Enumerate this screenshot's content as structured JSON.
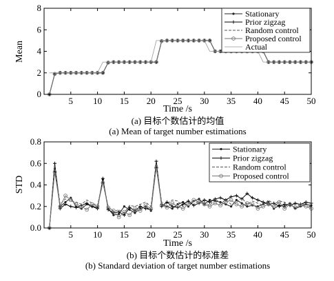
{
  "chart_data": [
    {
      "type": "line",
      "caption_zh": "(a) 目标个数估计的均值",
      "caption_en": "(a) Mean of target number estimations",
      "xlabel": "Time /s",
      "ylabel": "Mean",
      "xlim": [
        0,
        50
      ],
      "ylim": [
        0,
        8
      ],
      "xticks": [
        5,
        10,
        15,
        20,
        25,
        30,
        35,
        40,
        45,
        50
      ],
      "yticks": [
        0,
        2,
        4,
        6,
        8
      ],
      "legend_position": "top-right",
      "x": [
        1,
        2,
        3,
        4,
        5,
        6,
        7,
        8,
        9,
        10,
        11,
        12,
        13,
        14,
        15,
        16,
        17,
        18,
        19,
        20,
        21,
        22,
        23,
        24,
        25,
        26,
        27,
        28,
        29,
        30,
        31,
        32,
        33,
        34,
        35,
        36,
        37,
        38,
        39,
        40,
        41,
        42,
        43,
        44,
        45,
        46,
        47,
        48,
        49,
        50
      ],
      "series": [
        {
          "name": "Stationary",
          "style": "dot",
          "values": [
            0,
            1.9,
            2,
            2,
            2,
            2,
            2,
            2,
            2,
            2,
            2,
            2.95,
            3,
            3,
            3,
            3,
            3,
            3,
            3,
            3,
            3,
            4.95,
            5,
            5,
            5,
            5,
            5,
            5,
            5,
            5,
            5,
            4,
            4,
            4,
            4,
            4,
            4,
            4,
            4,
            4,
            4,
            3,
            3,
            3,
            3,
            3,
            3,
            3,
            3,
            3
          ]
        },
        {
          "name": "Prior zigzag",
          "style": "plus",
          "values": [
            0,
            1.9,
            2,
            2,
            2,
            2,
            2,
            2,
            2,
            2,
            2,
            2.95,
            3,
            3,
            3,
            3,
            3,
            3,
            3,
            3,
            3,
            4.95,
            5,
            5,
            5,
            5,
            5,
            5,
            5,
            5,
            5,
            4,
            4,
            4,
            4,
            4,
            4,
            4,
            4,
            4,
            4,
            3,
            3,
            3,
            3,
            3,
            3,
            3,
            3,
            3
          ]
        },
        {
          "name": "Random control",
          "style": "dashed",
          "values": [
            0,
            1.9,
            2,
            2,
            2,
            2,
            2,
            2,
            2,
            2,
            2,
            2.95,
            3,
            3,
            3,
            3,
            3,
            3,
            3,
            3,
            3,
            4.95,
            5,
            5,
            5,
            5,
            5,
            5,
            5,
            5,
            5,
            4,
            4,
            4,
            4,
            4,
            4,
            4,
            4,
            4,
            4,
            3,
            3,
            3,
            3,
            3,
            3,
            3,
            3,
            3
          ]
        },
        {
          "name": "Proposed control",
          "style": "circle",
          "values": [
            0,
            1.9,
            2,
            2,
            2,
            2,
            2,
            2,
            2,
            2,
            2,
            2.95,
            3,
            3,
            3,
            3,
            3,
            3,
            3,
            3,
            3,
            4.95,
            5,
            5,
            5,
            5,
            5,
            5,
            5,
            5,
            5,
            4,
            4,
            4,
            4,
            4,
            4,
            4,
            4,
            4,
            4,
            3,
            3,
            3,
            3,
            3,
            3,
            3,
            3,
            3
          ]
        },
        {
          "name": "Actual",
          "style": "solid-thin",
          "values": [
            2,
            2,
            2,
            2,
            2,
            2,
            2,
            2,
            2,
            2,
            3,
            3,
            3,
            3,
            3,
            3,
            3,
            3,
            3,
            3,
            5,
            5,
            5,
            5,
            5,
            5,
            5,
            5,
            5,
            5,
            4,
            4,
            4,
            4,
            4,
            4,
            4,
            4,
            4,
            4,
            3,
            3,
            3,
            3,
            3,
            3,
            3,
            3,
            3,
            3
          ]
        }
      ]
    },
    {
      "type": "line",
      "caption_zh": "(b) 目标个数估计的标准差",
      "caption_en": "(b) Standard deviation of target number estimations",
      "xlabel": "Time /s",
      "ylabel": "STD",
      "xlim": [
        0,
        50
      ],
      "ylim": [
        0,
        0.8
      ],
      "xticks": [
        5,
        10,
        15,
        20,
        25,
        30,
        35,
        40,
        45,
        50
      ],
      "yticks": [
        0,
        0.2,
        0.4,
        0.6,
        0.8
      ],
      "legend_position": "top-right",
      "x": [
        1,
        2,
        3,
        4,
        5,
        6,
        7,
        8,
        9,
        10,
        11,
        12,
        13,
        14,
        15,
        16,
        17,
        18,
        19,
        20,
        21,
        22,
        23,
        24,
        25,
        26,
        27,
        28,
        29,
        30,
        31,
        32,
        33,
        34,
        35,
        36,
        37,
        38,
        39,
        40,
        41,
        42,
        43,
        44,
        45,
        46,
        47,
        48,
        49,
        50
      ],
      "series": [
        {
          "name": "Stationary",
          "style": "dot",
          "values": [
            0,
            0.55,
            0.2,
            0.24,
            0.28,
            0.2,
            0.18,
            0.22,
            0.2,
            0.19,
            0.45,
            0.18,
            0.12,
            0.13,
            0.2,
            0.17,
            0.14,
            0.18,
            0.2,
            0.16,
            0.58,
            0.22,
            0.2,
            0.18,
            0.22,
            0.24,
            0.2,
            0.25,
            0.27,
            0.22,
            0.26,
            0.25,
            0.24,
            0.22,
            0.2,
            0.26,
            0.23,
            0.2,
            0.21,
            0.2,
            0.22,
            0.24,
            0.18,
            0.21,
            0.2,
            0.23,
            0.18,
            0.2,
            0.22,
            0.21
          ]
        },
        {
          "name": "Prior zigzag",
          "style": "plus",
          "values": [
            0,
            0.6,
            0.18,
            0.22,
            0.2,
            0.19,
            0.21,
            0.23,
            0.2,
            0.18,
            0.46,
            0.17,
            0.14,
            0.15,
            0.12,
            0.19,
            0.16,
            0.2,
            0.18,
            0.17,
            0.62,
            0.2,
            0.24,
            0.2,
            0.19,
            0.22,
            0.25,
            0.21,
            0.23,
            0.26,
            0.24,
            0.27,
            0.28,
            0.26,
            0.29,
            0.3,
            0.27,
            0.32,
            0.28,
            0.26,
            0.24,
            0.22,
            0.23,
            0.2,
            0.22,
            0.21,
            0.23,
            0.22,
            0.24,
            0.23
          ]
        },
        {
          "name": "Random control",
          "style": "dashed",
          "values": [
            0,
            0.58,
            0.22,
            0.27,
            0.25,
            0.24,
            0.22,
            0.26,
            0.23,
            0.21,
            0.44,
            0.2,
            0.15,
            0.17,
            0.14,
            0.21,
            0.2,
            0.22,
            0.24,
            0.2,
            0.6,
            0.24,
            0.22,
            0.26,
            0.25,
            0.2,
            0.23,
            0.22,
            0.25,
            0.24,
            0.21,
            0.27,
            0.23,
            0.26,
            0.22,
            0.24,
            0.28,
            0.22,
            0.25,
            0.23,
            0.21,
            0.26,
            0.22,
            0.25,
            0.24,
            0.2,
            0.22,
            0.21,
            0.23,
            0.19
          ]
        },
        {
          "name": "Proposed control",
          "style": "circle",
          "values": [
            0,
            0.52,
            0.2,
            0.3,
            0.26,
            0.22,
            0.2,
            0.17,
            0.22,
            0.2,
            0.42,
            0.19,
            0.16,
            0.1,
            0.15,
            0.12,
            0.18,
            0.16,
            0.21,
            0.18,
            0.56,
            0.21,
            0.19,
            0.23,
            0.2,
            0.18,
            0.22,
            0.26,
            0.24,
            0.22,
            0.2,
            0.23,
            0.21,
            0.24,
            0.26,
            0.22,
            0.2,
            0.23,
            0.22,
            0.18,
            0.2,
            0.22,
            0.2,
            0.24,
            0.18,
            0.22,
            0.19,
            0.21,
            0.2,
            0.18
          ]
        }
      ]
    }
  ]
}
